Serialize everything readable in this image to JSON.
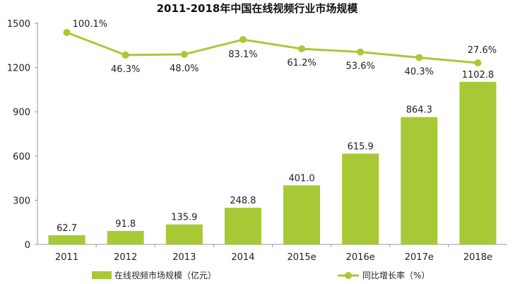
{
  "colors": {
    "accent": "#a8c935",
    "text": "#222222",
    "axis": "#9a9a9a"
  },
  "chart_data": {
    "type": "bar",
    "title": "2011-2018年中国在线视频行业市场规模",
    "categories": [
      "2011",
      "2012",
      "2013",
      "2014",
      "2015e",
      "2016e",
      "2017e",
      "2018e"
    ],
    "series": [
      {
        "name": "在线视频市场规模（亿元）",
        "type": "bar",
        "values": [
          62.7,
          91.8,
          135.9,
          248.8,
          401.0,
          615.9,
          864.3,
          1102.8
        ],
        "labels": [
          "62.7",
          "91.8",
          "135.9",
          "248.8",
          "401.0",
          "615.9",
          "864.3",
          "1102.8"
        ]
      },
      {
        "name": "同比增长率（%）",
        "type": "line",
        "values": [
          100.1,
          46.3,
          48.0,
          83.1,
          61.2,
          53.6,
          40.3,
          27.6
        ],
        "labels": [
          "100.1%",
          "46.3%",
          "48.0%",
          "83.1%",
          "61.2%",
          "53.6%",
          "40.3%",
          "27.6%"
        ]
      }
    ],
    "yticks": [
      "0",
      "300",
      "600",
      "900",
      "1200",
      "1500"
    ],
    "ylim": [
      0,
      1500
    ],
    "grid": false,
    "legend_position": "bottom"
  }
}
